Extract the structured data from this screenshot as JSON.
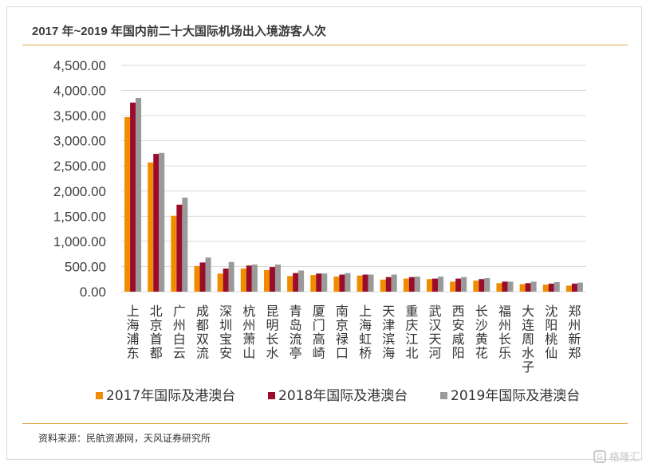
{
  "title": "2017 年~2019 年国内前二十大国际机场出入境游客人次",
  "source": "资料来源：民航资源网，天风证券研究所",
  "watermark": "格隆汇",
  "chart_data": {
    "type": "bar",
    "categories": [
      "上海浦东",
      "北京首都",
      "广州白云",
      "成都双流",
      "深圳宝安",
      "杭州萧山",
      "昆明长水",
      "青岛流亭",
      "厦门高崎",
      "南京禄口",
      "上海虹桥",
      "天津滨海",
      "重庆江北",
      "武汉天河",
      "西安咸阳",
      "长沙黄花",
      "福州长乐",
      "大连周水子",
      "沈阳桃仙",
      "郑州新郑"
    ],
    "series": [
      {
        "name": "2017年国际及港澳台",
        "color": "#f08c00",
        "values": [
          3470,
          2570,
          1510,
          510,
          360,
          460,
          430,
          310,
          330,
          300,
          320,
          240,
          260,
          250,
          200,
          220,
          170,
          150,
          140,
          120
        ]
      },
      {
        "name": "2018年国际及港澳台",
        "color": "#9b0b2b",
        "values": [
          3760,
          2740,
          1730,
          580,
          460,
          520,
          490,
          370,
          360,
          340,
          340,
          290,
          290,
          260,
          260,
          250,
          200,
          170,
          160,
          160
        ]
      },
      {
        "name": "2019年国际及港澳台",
        "color": "#9a9a9a",
        "values": [
          3850,
          2760,
          1870,
          680,
          590,
          540,
          540,
          420,
          360,
          370,
          340,
          340,
          300,
          300,
          290,
          270,
          200,
          200,
          190,
          180
        ]
      }
    ],
    "ylim": [
      0,
      4500
    ],
    "yticks": [
      "0.00",
      "500.00",
      "1,000.00",
      "1,500.00",
      "2,000.00",
      "2,500.00",
      "3,000.00",
      "3,500.00",
      "4,000.00",
      "4,500.00"
    ],
    "grid": true,
    "legend": "bottom"
  }
}
